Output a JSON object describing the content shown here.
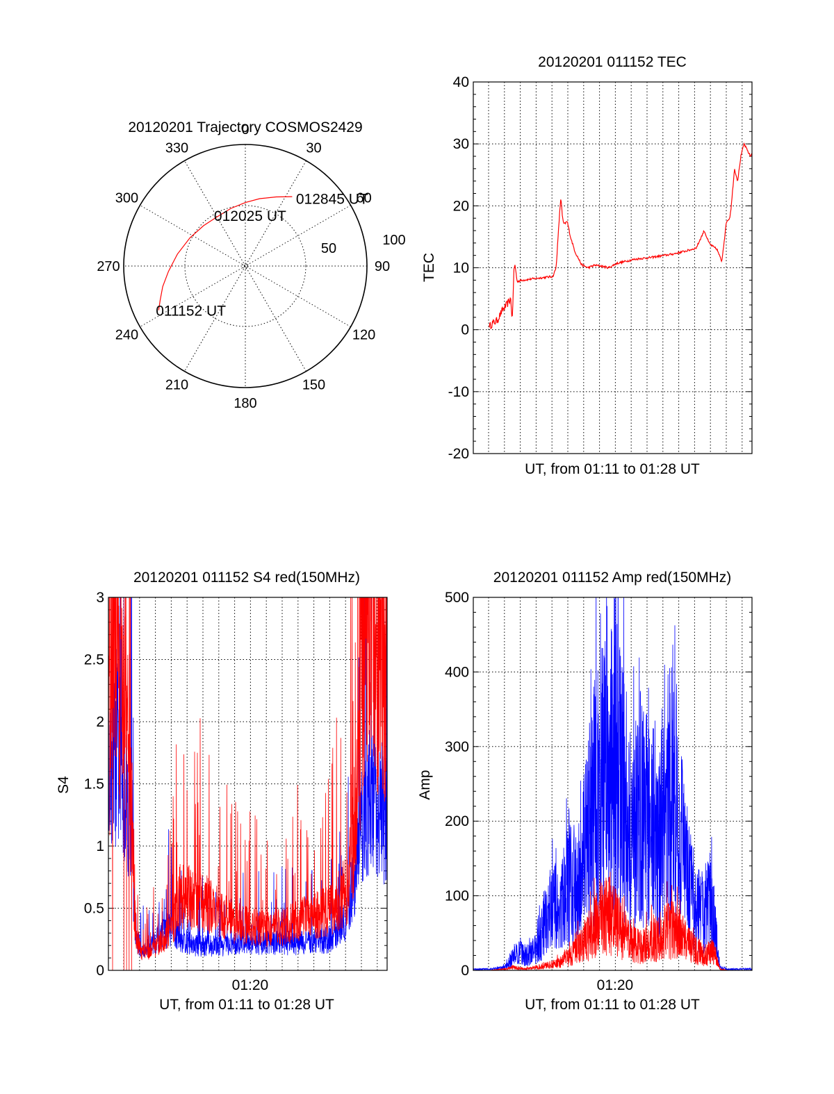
{
  "chart_data": [
    {
      "type": "polar",
      "title": "20120201 Trajectory COSMOS2429",
      "azimuth_labels": [
        "0",
        "30",
        "60",
        "90",
        "120",
        "150",
        "180",
        "210",
        "240",
        "270",
        "300",
        "330"
      ],
      "radial_labels": [
        "50",
        "100"
      ],
      "series": [
        {
          "color": "#ff0000",
          "points": [
            {
              "az": 243,
              "el": 18
            },
            {
              "az": 248,
              "el": 22
            },
            {
              "az": 256,
              "el": 27
            },
            {
              "az": 266,
              "el": 33
            },
            {
              "az": 280,
              "el": 39
            },
            {
              "az": 297,
              "el": 44
            },
            {
              "az": 314,
              "el": 47
            },
            {
              "az": 330,
              "el": 48
            },
            {
              "az": 346,
              "el": 46
            },
            {
              "az": 0,
              "el": 43
            },
            {
              "az": 12,
              "el": 39
            },
            {
              "az": 24,
              "el": 34
            },
            {
              "az": 34,
              "el": 28
            }
          ]
        }
      ],
      "annotations": [
        {
          "text": "012845 UT",
          "az": 36,
          "el": 28
        },
        {
          "text": "012025 UT",
          "az": 333,
          "el": 48
        },
        {
          "text": "011152 UT",
          "az": 243,
          "el": 18
        }
      ]
    },
    {
      "type": "line",
      "title": "20120201 011152 TEC",
      "xlabel": "UT, from 01:11 to 01:28 UT",
      "ylabel": "TEC",
      "ylim": [
        -20,
        40
      ],
      "yticks": [
        "-20",
        "-10",
        "0",
        "10",
        "20",
        "30",
        "40"
      ],
      "xlim": [
        0,
        17.5
      ],
      "grid": true,
      "series": [
        {
          "color": "#ff0000",
          "x": [
            1.0,
            1.2,
            1.5,
            1.8,
            2.1,
            2.35,
            2.45,
            2.55,
            2.62,
            2.75,
            3.1,
            4.0,
            5.0,
            5.2,
            5.4,
            5.5,
            5.6,
            5.7,
            5.9,
            6.1,
            6.4,
            6.8,
            7.2,
            7.6,
            8.0,
            8.5,
            9.0,
            9.5,
            10.0,
            10.5,
            11.0,
            11.5,
            12.0,
            12.5,
            13.0,
            13.5,
            14.0,
            14.5,
            14.8,
            15.0,
            15.3,
            15.6,
            15.9,
            16.1,
            16.2,
            16.4,
            16.6,
            16.8,
            17.0,
            17.2,
            17.4,
            17.5
          ],
          "y": [
            0.5,
            1.0,
            1.5,
            3.0,
            4.0,
            5.0,
            1.5,
            9.5,
            10.5,
            7.8,
            8.0,
            8.3,
            8.6,
            10.0,
            18.0,
            21.5,
            18.0,
            17.0,
            17.5,
            15.0,
            12.5,
            10.5,
            10.0,
            10.4,
            10.3,
            10.0,
            10.7,
            11.0,
            11.3,
            11.5,
            11.6,
            11.8,
            12.0,
            12.2,
            12.5,
            12.8,
            13.2,
            16.0,
            14.0,
            13.5,
            13.0,
            11.0,
            17.5,
            18.0,
            20.0,
            26.0,
            24.0,
            28.0,
            30.0,
            29.0,
            28.0,
            28.5
          ]
        }
      ]
    },
    {
      "type": "line",
      "title": "20120201 011152 S4 red(150MHz)",
      "xlabel": "UT, from 01:11 to 01:28 UT",
      "ylabel": "S4",
      "ylim": [
        0,
        3
      ],
      "yticks": [
        "0",
        "0.5",
        "1",
        "1.5",
        "2",
        "2.5",
        "3"
      ],
      "xlim": [
        0,
        17.5
      ],
      "xtick_label": {
        "x": 8.9,
        "text": "01:20"
      },
      "grid": true,
      "series": [
        {
          "color": "#0000ff",
          "x": [
            0.0,
            0.5,
            1.0,
            1.5,
            1.6,
            1.8,
            2.1,
            2.5,
            3.0,
            3.5,
            4.0,
            4.5,
            5.0,
            5.5,
            6.0,
            7.0,
            8.0,
            9.0,
            10.0,
            11.0,
            12.0,
            13.0,
            14.0,
            15.0,
            15.5,
            16.0,
            16.5,
            17.0,
            17.5
          ],
          "y": [
            1.5,
            1.8,
            1.5,
            1.2,
            0.5,
            0.25,
            0.15,
            0.18,
            0.25,
            0.3,
            0.35,
            0.25,
            0.22,
            0.2,
            0.2,
            0.2,
            0.21,
            0.22,
            0.22,
            0.22,
            0.22,
            0.23,
            0.25,
            0.45,
            0.8,
            1.2,
            1.4,
            1.3,
            1.2
          ]
        },
        {
          "color": "#ff0000",
          "x": [
            0.0,
            0.5,
            1.0,
            1.5,
            1.6,
            1.8,
            2.1,
            2.5,
            3.0,
            3.5,
            4.0,
            4.5,
            5.0,
            5.5,
            6.0,
            7.0,
            8.0,
            9.0,
            10.0,
            11.0,
            12.0,
            13.0,
            14.0,
            15.0,
            15.5,
            16.0,
            16.5,
            17.0,
            17.5
          ],
          "y": [
            1.8,
            2.5,
            2.2,
            1.2,
            0.5,
            0.25,
            0.15,
            0.15,
            0.2,
            0.25,
            0.35,
            0.6,
            0.6,
            0.55,
            0.55,
            0.45,
            0.38,
            0.35,
            0.33,
            0.35,
            0.4,
            0.45,
            0.5,
            0.65,
            1.2,
            2.5,
            2.8,
            2.5,
            2.3
          ]
        }
      ]
    },
    {
      "type": "line",
      "title": "20120201 011152 Amp red(150MHz)",
      "xlabel": "UT, from 01:11 to 01:28 UT",
      "ylabel": "Amp",
      "ylim": [
        0,
        500
      ],
      "yticks": [
        "0",
        "100",
        "200",
        "300",
        "400",
        "500"
      ],
      "xlim": [
        0,
        17.5
      ],
      "xtick_label": {
        "x": 8.9,
        "text": "01:20"
      },
      "grid": true,
      "series": [
        {
          "color": "#0000ff",
          "x": [
            0.0,
            1.0,
            2.0,
            2.5,
            3.0,
            3.5,
            4.0,
            4.5,
            5.0,
            5.5,
            6.0,
            6.5,
            7.0,
            7.5,
            8.0,
            8.5,
            9.0,
            9.5,
            10.0,
            10.5,
            11.0,
            11.5,
            12.0,
            12.5,
            13.0,
            13.5,
            14.0,
            14.5,
            15.0,
            15.5,
            16.0,
            17.5
          ],
          "y": [
            2,
            2,
            5,
            25,
            30,
            25,
            40,
            80,
            110,
            100,
            150,
            130,
            200,
            280,
            330,
            330,
            360,
            290,
            230,
            280,
            250,
            200,
            250,
            330,
            250,
            150,
            100,
            110,
            110,
            5,
            2,
            2
          ]
        },
        {
          "color": "#ff0000",
          "x": [
            0.0,
            1.0,
            2.0,
            2.5,
            3.0,
            3.5,
            4.0,
            4.5,
            5.0,
            5.5,
            6.0,
            6.5,
            7.0,
            7.5,
            8.0,
            8.5,
            9.0,
            9.5,
            10.0,
            10.5,
            11.0,
            11.5,
            12.0,
            12.5,
            13.0,
            13.5,
            14.0,
            14.5,
            15.0,
            15.5,
            16.0,
            17.5
          ],
          "y": [
            0,
            0,
            2,
            5,
            3,
            3,
            5,
            8,
            10,
            15,
            25,
            35,
            50,
            70,
            90,
            95,
            80,
            60,
            45,
            40,
            45,
            55,
            65,
            70,
            60,
            45,
            35,
            25,
            35,
            2,
            0,
            0
          ]
        }
      ]
    }
  ]
}
